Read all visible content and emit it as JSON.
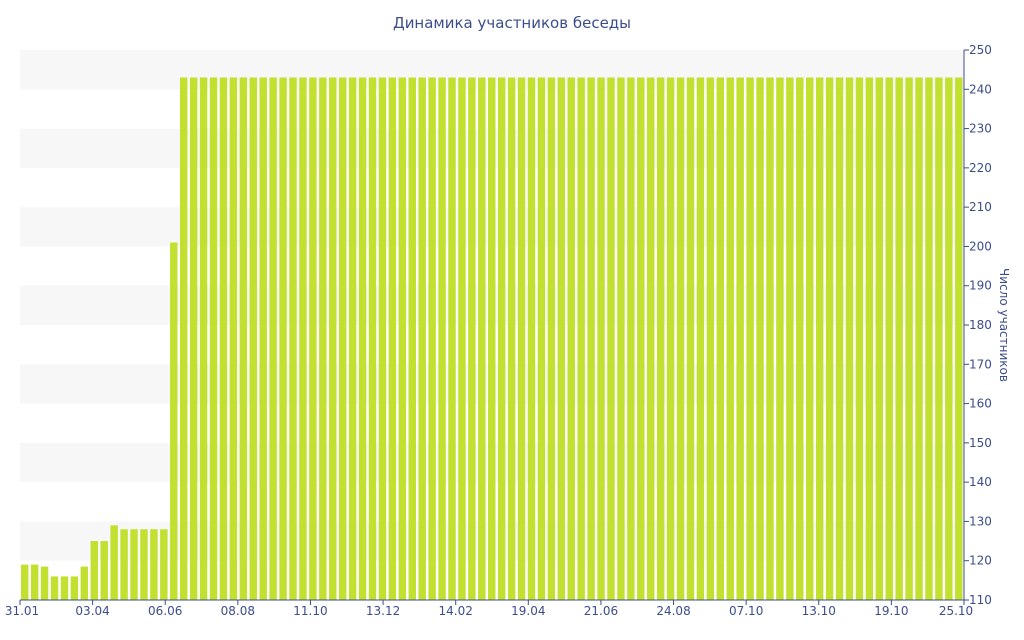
{
  "chart_data": {
    "type": "bar",
    "title": "Динамика участников беседы",
    "ylabel": "Число участников",
    "xlabel": "",
    "ylim": [
      110,
      250
    ],
    "y_ticks": [
      110,
      120,
      130,
      140,
      150,
      160,
      170,
      180,
      190,
      200,
      210,
      220,
      230,
      240,
      250
    ],
    "x_tick_labels": [
      "31.01",
      "03.04",
      "06.06",
      "08.08",
      "11.10",
      "13.12",
      "14.02",
      "19.04",
      "21.06",
      "24.08",
      "07.10",
      "13.10",
      "19.10",
      "25.10"
    ],
    "values": [
      119,
      119,
      118.5,
      116,
      116,
      116,
      118.5,
      125,
      125,
      129,
      128,
      128,
      128,
      128,
      128,
      201,
      243,
      243,
      243,
      243,
      243,
      243,
      243,
      243,
      243,
      243,
      243,
      243,
      243,
      243,
      243,
      243,
      243,
      243,
      243,
      243,
      243,
      243,
      243,
      243,
      243,
      243,
      243,
      243,
      243,
      243,
      243,
      243,
      243,
      243,
      243,
      243,
      243,
      243,
      243,
      243,
      243,
      243,
      243,
      243,
      243,
      243,
      243,
      243,
      243,
      243,
      243,
      243,
      243,
      243,
      243,
      243,
      243,
      243,
      243,
      243,
      243,
      243,
      243,
      243,
      243,
      243,
      243,
      243,
      243,
      243,
      243,
      243,
      243,
      243,
      243,
      243,
      243,
      243,
      243
    ],
    "grid": "alternating horizontal bands",
    "y_axis_position": "right",
    "colors": {
      "bar": "#c1e030",
      "band": "#f7f7f7",
      "axis": "#3c4d8c"
    }
  }
}
